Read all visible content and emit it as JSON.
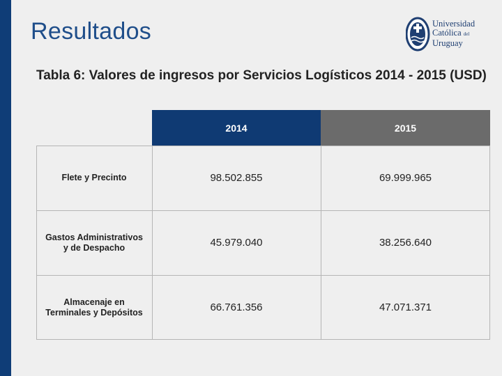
{
  "slide": {
    "title": "Resultados"
  },
  "logo": {
    "line1": "Universidad",
    "line2": "Católica",
    "line2_suffix": "del",
    "line3": "Uruguay"
  },
  "table": {
    "caption": "Tabla 6: Valores de ingresos por Servicios Logísticos 2014 - 2015 (USD)",
    "columns": [
      "2014",
      "2015"
    ],
    "rows": [
      {
        "label": "Flete y Precinto",
        "v2014": "98.502.855",
        "v2015": "69.999.965"
      },
      {
        "label": "Gastos Administrativos y de Despacho",
        "v2014": "45.979.040",
        "v2015": "38.256.640"
      },
      {
        "label": "Almacenaje en Terminales y Depósitos",
        "v2014": "66.761.356",
        "v2015": "47.071.371"
      }
    ]
  },
  "colors": {
    "accent_blue": "#0f3a73",
    "header_gray": "#6b6b6b",
    "title_blue": "#1f4e8a"
  }
}
